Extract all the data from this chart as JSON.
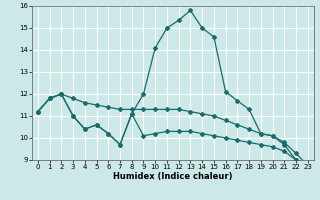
{
  "xlabel": "Humidex (Indice chaleur)",
  "bg_color": "#cde8e8",
  "grid_color": "#ffffff",
  "line_color": "#1a6b6b",
  "xlim": [
    -0.5,
    23.5
  ],
  "ylim": [
    9,
    16
  ],
  "xticks": [
    0,
    1,
    2,
    3,
    4,
    5,
    6,
    7,
    8,
    9,
    10,
    11,
    12,
    13,
    14,
    15,
    16,
    17,
    18,
    19,
    20,
    21,
    22,
    23
  ],
  "yticks": [
    9,
    10,
    11,
    12,
    13,
    14,
    15,
    16
  ],
  "line1_x": [
    0,
    1,
    2,
    3,
    4,
    5,
    6,
    7,
    8,
    9,
    10,
    11,
    12,
    13,
    14,
    15,
    16,
    17,
    18,
    19,
    20,
    21,
    22,
    23
  ],
  "line1_y": [
    11.2,
    11.8,
    12.0,
    11.8,
    11.6,
    11.5,
    11.4,
    11.3,
    11.3,
    11.3,
    11.3,
    11.3,
    11.3,
    11.2,
    11.1,
    11.0,
    10.8,
    10.6,
    10.4,
    10.2,
    10.1,
    9.8,
    9.3,
    8.75
  ],
  "line2_x": [
    0,
    1,
    2,
    3,
    4,
    5,
    6,
    7,
    8,
    9,
    10,
    11,
    12,
    13,
    14,
    15,
    16,
    17,
    18,
    19,
    20,
    21,
    22,
    23
  ],
  "line2_y": [
    11.2,
    11.8,
    12.0,
    11.0,
    10.4,
    10.6,
    10.2,
    9.7,
    11.1,
    10.1,
    10.2,
    10.3,
    10.3,
    10.3,
    10.2,
    10.1,
    10.0,
    9.9,
    9.8,
    9.7,
    9.6,
    9.4,
    9.0,
    8.75
  ],
  "line3_x": [
    0,
    1,
    2,
    3,
    4,
    5,
    6,
    7,
    8,
    9,
    10,
    11,
    12,
    13,
    14,
    15,
    16,
    17,
    18,
    19,
    20,
    21,
    22,
    23
  ],
  "line3_y": [
    11.2,
    11.8,
    12.0,
    11.0,
    10.4,
    10.6,
    10.2,
    9.7,
    11.1,
    12.0,
    14.1,
    15.0,
    15.35,
    15.8,
    15.0,
    14.6,
    12.1,
    11.7,
    11.3,
    10.2,
    10.1,
    9.7,
    9.0,
    8.75
  ]
}
